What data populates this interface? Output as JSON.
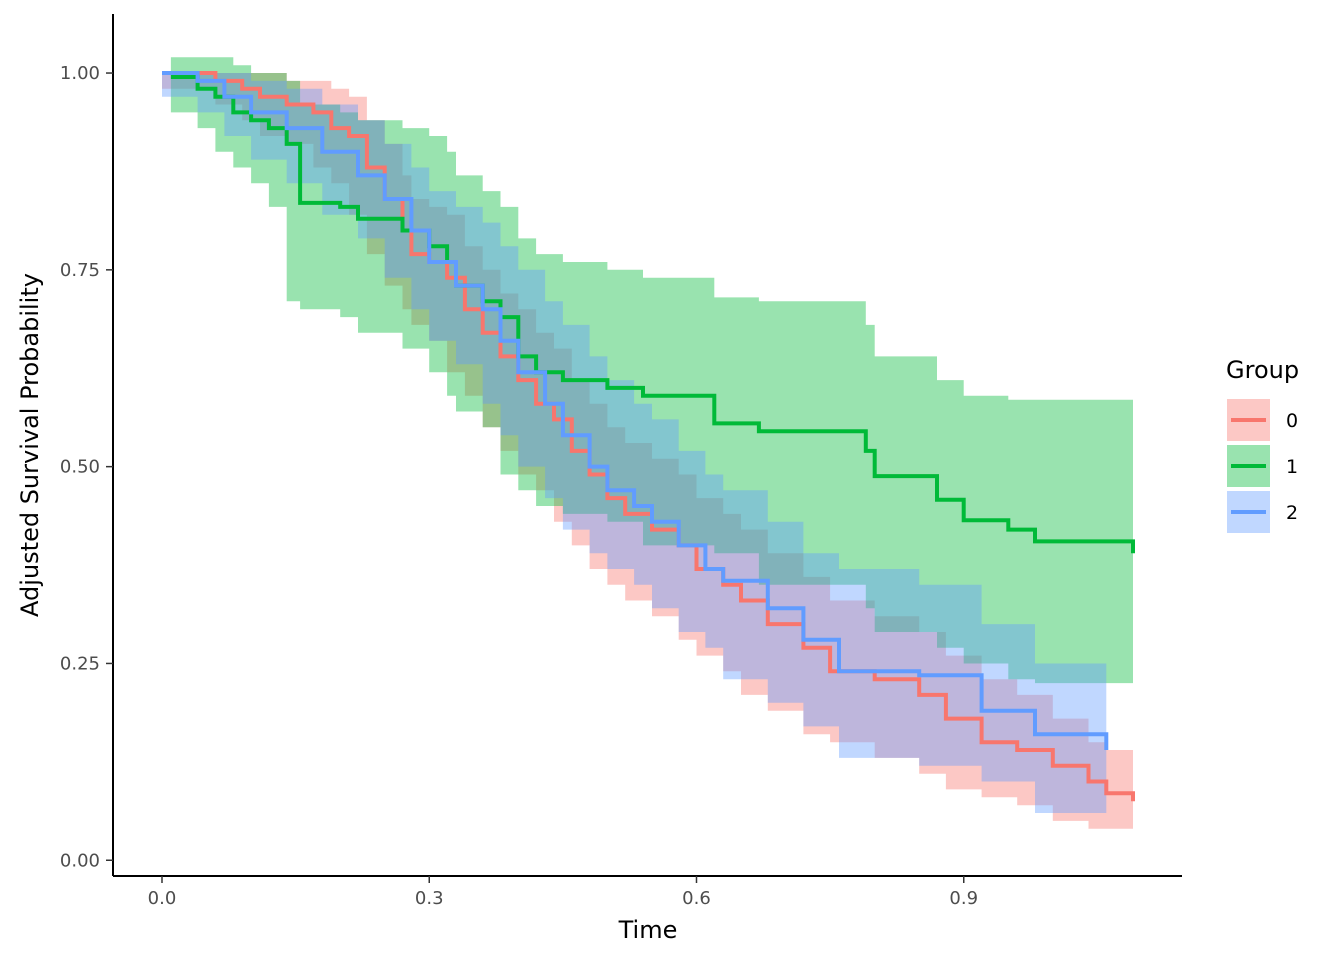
{
  "chart_data": {
    "type": "line",
    "step": true,
    "xlabel": "Time",
    "ylabel": "Adjusted Survival Probability",
    "xlim": [
      -0.055,
      1.145
    ],
    "ylim": [
      -0.02,
      1.075
    ],
    "xticks": [
      0.0,
      0.3,
      0.6,
      0.9
    ],
    "xtick_labels": [
      "0.0",
      "0.3",
      "0.6",
      "0.9"
    ],
    "yticks": [
      0.0,
      0.25,
      0.5,
      0.75,
      1.0
    ],
    "ytick_labels": [
      "0.00",
      "0.25",
      "0.50",
      "0.75",
      "1.00"
    ],
    "grid": false,
    "legend": {
      "title": "Group",
      "position": "right"
    },
    "series": [
      {
        "name": "0",
        "color": "#F8766D",
        "x": [
          0.0,
          0.06,
          0.09,
          0.11,
          0.14,
          0.17,
          0.19,
          0.21,
          0.23,
          0.25,
          0.27,
          0.28,
          0.3,
          0.32,
          0.34,
          0.36,
          0.38,
          0.4,
          0.42,
          0.44,
          0.46,
          0.48,
          0.5,
          0.52,
          0.55,
          0.58,
          0.6,
          0.63,
          0.65,
          0.68,
          0.72,
          0.75,
          0.8,
          0.85,
          0.88,
          0.92,
          0.96,
          1.0,
          1.04,
          1.06,
          1.09
        ],
        "y": [
          1.0,
          0.99,
          0.98,
          0.97,
          0.96,
          0.95,
          0.93,
          0.92,
          0.88,
          0.84,
          0.8,
          0.77,
          0.76,
          0.74,
          0.7,
          0.67,
          0.64,
          0.61,
          0.58,
          0.56,
          0.52,
          0.49,
          0.46,
          0.44,
          0.42,
          0.4,
          0.37,
          0.35,
          0.33,
          0.3,
          0.27,
          0.24,
          0.23,
          0.21,
          0.18,
          0.15,
          0.14,
          0.12,
          0.1,
          0.085,
          0.075
        ],
        "lower": [
          1.0,
          0.98,
          0.96,
          0.94,
          0.92,
          0.91,
          0.88,
          0.86,
          0.82,
          0.77,
          0.73,
          0.7,
          0.68,
          0.66,
          0.62,
          0.59,
          0.55,
          0.52,
          0.49,
          0.47,
          0.43,
          0.4,
          0.37,
          0.35,
          0.33,
          0.31,
          0.28,
          0.26,
          0.24,
          0.21,
          0.19,
          0.16,
          0.15,
          0.13,
          0.11,
          0.09,
          0.08,
          0.07,
          0.05,
          0.04,
          0.04
        ],
        "upper": [
          1.0,
          1.0,
          1.0,
          1.0,
          0.99,
          0.99,
          0.98,
          0.97,
          0.94,
          0.91,
          0.87,
          0.84,
          0.83,
          0.82,
          0.78,
          0.75,
          0.72,
          0.7,
          0.67,
          0.65,
          0.61,
          0.58,
          0.55,
          0.53,
          0.51,
          0.49,
          0.46,
          0.44,
          0.42,
          0.39,
          0.36,
          0.33,
          0.31,
          0.29,
          0.26,
          0.23,
          0.21,
          0.18,
          0.15,
          0.14,
          0.14
        ]
      },
      {
        "name": "1",
        "color": "#00BA38",
        "x": [
          0.01,
          0.04,
          0.06,
          0.08,
          0.1,
          0.12,
          0.14,
          0.155,
          0.2,
          0.22,
          0.27,
          0.3,
          0.32,
          0.33,
          0.36,
          0.38,
          0.4,
          0.42,
          0.45,
          0.5,
          0.54,
          0.62,
          0.67,
          0.79,
          0.8,
          0.87,
          0.9,
          0.95,
          0.98,
          1.09
        ],
        "y": [
          0.995,
          0.98,
          0.97,
          0.95,
          0.94,
          0.93,
          0.91,
          0.835,
          0.83,
          0.815,
          0.8,
          0.78,
          0.76,
          0.73,
          0.71,
          0.69,
          0.64,
          0.62,
          0.61,
          0.6,
          0.59,
          0.555,
          0.545,
          0.52,
          0.488,
          0.458,
          0.432,
          0.42,
          0.405,
          0.39
        ],
        "lower": [
          0.98,
          0.95,
          0.93,
          0.9,
          0.88,
          0.86,
          0.83,
          0.71,
          0.7,
          0.69,
          0.67,
          0.65,
          0.62,
          0.59,
          0.57,
          0.55,
          0.49,
          0.47,
          0.45,
          0.44,
          0.43,
          0.4,
          0.39,
          0.35,
          0.32,
          0.29,
          0.27,
          0.25,
          0.23,
          0.225
        ],
        "upper": [
          1.02,
          1.02,
          1.02,
          1.01,
          1.0,
          1.0,
          0.99,
          0.96,
          0.95,
          0.94,
          0.93,
          0.92,
          0.9,
          0.87,
          0.85,
          0.83,
          0.79,
          0.77,
          0.76,
          0.75,
          0.74,
          0.715,
          0.71,
          0.68,
          0.64,
          0.61,
          0.59,
          0.585,
          0.585,
          0.585
        ]
      },
      {
        "name": "2",
        "color": "#619CFF",
        "x": [
          0.0,
          0.04,
          0.07,
          0.1,
          0.14,
          0.18,
          0.22,
          0.25,
          0.28,
          0.3,
          0.33,
          0.36,
          0.38,
          0.4,
          0.43,
          0.45,
          0.48,
          0.5,
          0.53,
          0.55,
          0.58,
          0.61,
          0.63,
          0.68,
          0.72,
          0.76,
          0.85,
          0.92,
          0.98,
          1.06
        ],
        "y": [
          1.0,
          0.99,
          0.97,
          0.95,
          0.93,
          0.9,
          0.87,
          0.84,
          0.8,
          0.76,
          0.73,
          0.7,
          0.66,
          0.62,
          0.58,
          0.54,
          0.5,
          0.47,
          0.45,
          0.43,
          0.4,
          0.37,
          0.355,
          0.32,
          0.28,
          0.24,
          0.235,
          0.19,
          0.16,
          0.14
        ],
        "lower": [
          1.0,
          0.97,
          0.95,
          0.92,
          0.89,
          0.86,
          0.82,
          0.79,
          0.74,
          0.7,
          0.66,
          0.63,
          0.58,
          0.54,
          0.5,
          0.46,
          0.42,
          0.39,
          0.37,
          0.35,
          0.32,
          0.29,
          0.27,
          0.23,
          0.2,
          0.17,
          0.13,
          0.12,
          0.1,
          0.06
        ],
        "upper": [
          1.0,
          1.0,
          1.0,
          0.99,
          0.98,
          0.96,
          0.94,
          0.91,
          0.88,
          0.85,
          0.83,
          0.81,
          0.78,
          0.75,
          0.71,
          0.68,
          0.64,
          0.61,
          0.58,
          0.56,
          0.52,
          0.49,
          0.47,
          0.43,
          0.39,
          0.37,
          0.35,
          0.3,
          0.25,
          0.24
        ]
      }
    ]
  }
}
